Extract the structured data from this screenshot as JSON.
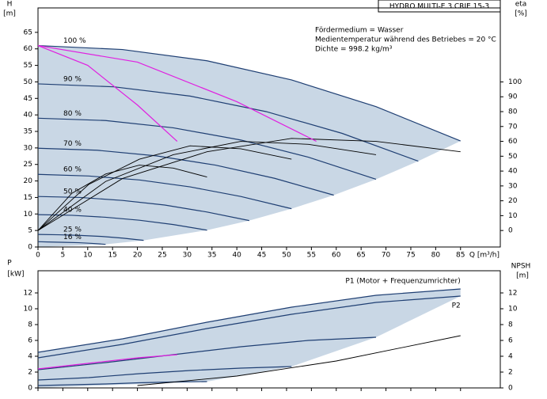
{
  "chart_data": [
    {
      "type": "line",
      "title": "HYDRO MULTI-E 3 CRIE 15-3",
      "annotations": [
        "Fördermedium = Wasser",
        "Medientemperatur während des Betriebes = 20 °C",
        "Dichte = 998.2 kg/m³"
      ],
      "x_label": "Q [m³/h]",
      "y_label": "H",
      "y_unit": "[m]",
      "y2_label": "eta",
      "y2_unit": "[%]",
      "xlim": [
        0,
        93
      ],
      "ylim": [
        0,
        72.4
      ],
      "y2lim": [
        -11.1,
        149.8
      ],
      "xticks": [
        0,
        5,
        10,
        15,
        20,
        25,
        30,
        35,
        40,
        45,
        50,
        55,
        60,
        65,
        70,
        75,
        80,
        85
      ],
      "yticks": [
        0,
        5,
        10,
        15,
        20,
        25,
        30,
        35,
        40,
        45,
        50,
        55,
        60,
        65
      ],
      "y2ticks": [
        0,
        10,
        20,
        30,
        40,
        50,
        60,
        70,
        80,
        90,
        100
      ],
      "area_color": "#c9d7e5",
      "series": [
        {
          "name": "100 %",
          "color": "#1f3f73",
          "x": [
            0,
            17,
            34,
            51,
            68,
            85
          ],
          "values": [
            61,
            59.8,
            56.4,
            50.6,
            42.5,
            32.1
          ]
        },
        {
          "name": "90 %",
          "color": "#1f3f73",
          "x": [
            0,
            15.3,
            30.6,
            45.9,
            61.2,
            76.5
          ],
          "values": [
            49.4,
            48.5,
            45.7,
            41,
            34.4,
            26
          ]
        },
        {
          "name": "80 %",
          "color": "#1f3f73",
          "x": [
            0,
            13.6,
            27.2,
            40.8,
            54.4,
            68
          ],
          "values": [
            39,
            38.3,
            36.1,
            32.4,
            27.2,
            20.5
          ]
        },
        {
          "name": "70 %",
          "color": "#1f3f73",
          "x": [
            0,
            11.9,
            23.8,
            35.7,
            47.6,
            59.5
          ],
          "values": [
            29.9,
            29.3,
            27.6,
            24.8,
            20.8,
            15.7
          ]
        },
        {
          "name": "60 %",
          "color": "#1f3f73",
          "x": [
            0,
            10.2,
            20.4,
            30.6,
            40.8,
            51
          ],
          "values": [
            22,
            21.5,
            20.3,
            18.2,
            15.3,
            11.6
          ]
        },
        {
          "name": "50 %",
          "color": "#1f3f73",
          "x": [
            0,
            8.5,
            17,
            25.5,
            34,
            42.5
          ],
          "values": [
            15.3,
            15,
            14.1,
            12.7,
            10.6,
            8
          ]
        },
        {
          "name": "40 %",
          "color": "#1f3f73",
          "x": [
            0,
            6.8,
            13.6,
            20.4,
            27.2,
            34
          ],
          "values": [
            9.8,
            9.6,
            9,
            8.1,
            6.8,
            5.1
          ]
        },
        {
          "name": "25 %",
          "color": "#1f3f73",
          "x": [
            0,
            4.25,
            8.5,
            12.75,
            17,
            21.25
          ],
          "values": [
            3.8,
            3.7,
            3.5,
            3.2,
            2.7,
            2
          ]
        },
        {
          "name": "16 %",
          "color": "#1f3f73",
          "x": [
            0,
            2.7,
            5.4,
            8.2,
            10.9,
            13.6
          ],
          "values": [
            1.6,
            1.5,
            1.4,
            1.3,
            1.1,
            0.8
          ]
        },
        {
          "axis": "y2",
          "color": "#000000",
          "x": [
            0,
            17,
            34,
            51,
            68,
            85
          ],
          "values": [
            0,
            35,
            53,
            62,
            60,
            53
          ]
        },
        {
          "axis": "y2",
          "color": "#000000",
          "x": [
            0,
            13.6,
            27.2,
            40.8,
            54.4,
            68
          ],
          "values": [
            0,
            33,
            51,
            60,
            58,
            51
          ]
        },
        {
          "axis": "y2",
          "color": "#000000",
          "x": [
            0,
            10.2,
            20.4,
            30.6,
            40.8,
            51
          ],
          "values": [
            0,
            31,
            48,
            57,
            55,
            48
          ]
        },
        {
          "axis": "y2",
          "color": "#000000",
          "x": [
            0,
            6.8,
            13.6,
            20.4,
            27.2,
            34
          ],
          "values": [
            0,
            25,
            38,
            44,
            42,
            36
          ]
        },
        {
          "color": "#e020e0",
          "x": [
            0,
            10,
            20,
            28
          ],
          "values": [
            61,
            55,
            43,
            32
          ]
        },
        {
          "color": "#e020e0",
          "x": [
            0,
            20,
            40,
            56
          ],
          "values": [
            61,
            56,
            44,
            32
          ]
        }
      ]
    },
    {
      "type": "line",
      "y_label": "P",
      "y_unit": "[kW]",
      "y2_label": "NPSH",
      "y2_unit": "[m]",
      "xlim": [
        0,
        93
      ],
      "ylim": [
        0,
        14.8
      ],
      "y2lim": [
        0,
        14.8
      ],
      "xticks": [
        0,
        5,
        10,
        15,
        20,
        25,
        30,
        35,
        40,
        45,
        50,
        55,
        60,
        65,
        70,
        75,
        80,
        85
      ],
      "yticks": [
        0,
        2,
        4,
        6,
        8,
        10,
        12
      ],
      "y2ticks": [
        0,
        2,
        4,
        6,
        8,
        10,
        12
      ],
      "area_color": "#c9d7e5",
      "series": [
        {
          "name": "P1 (Motor + Frequenzumrichter)",
          "color": "#1f3f73",
          "x": [
            0,
            17,
            34,
            51,
            68,
            85
          ],
          "values": [
            4.5,
            6.2,
            8.3,
            10.2,
            11.7,
            12.5
          ]
        },
        {
          "name": "P2",
          "color": "#1f3f73",
          "x": [
            0,
            17,
            34,
            51,
            68,
            85
          ],
          "values": [
            3.8,
            5.5,
            7.5,
            9.3,
            10.8,
            11.6
          ]
        },
        {
          "color": "#1f3f73",
          "x": [
            0,
            13.6,
            27.2,
            40.8,
            54.4,
            68
          ],
          "values": [
            2.3,
            3.2,
            4.2,
            5.2,
            6,
            6.4
          ]
        },
        {
          "color": "#1f3f73",
          "x": [
            0,
            10.2,
            20.4,
            30.6,
            40.8,
            51
          ],
          "values": [
            1,
            1.3,
            1.8,
            2.2,
            2.5,
            2.7
          ]
        },
        {
          "color": "#1f3f73",
          "x": [
            0,
            6.8,
            13.6,
            20.4,
            27.2,
            34
          ],
          "values": [
            0.3,
            0.4,
            0.5,
            0.65,
            0.75,
            0.8
          ]
        },
        {
          "color": "#e020e0",
          "x": [
            0,
            10,
            20,
            28
          ],
          "values": [
            2.4,
            3.1,
            3.8,
            4.2
          ]
        },
        {
          "axis": "y2",
          "color": "#000000",
          "x": [
            20,
            40,
            60,
            85
          ],
          "values": [
            0.3,
            1.5,
            3.4,
            6.6
          ]
        }
      ]
    }
  ]
}
